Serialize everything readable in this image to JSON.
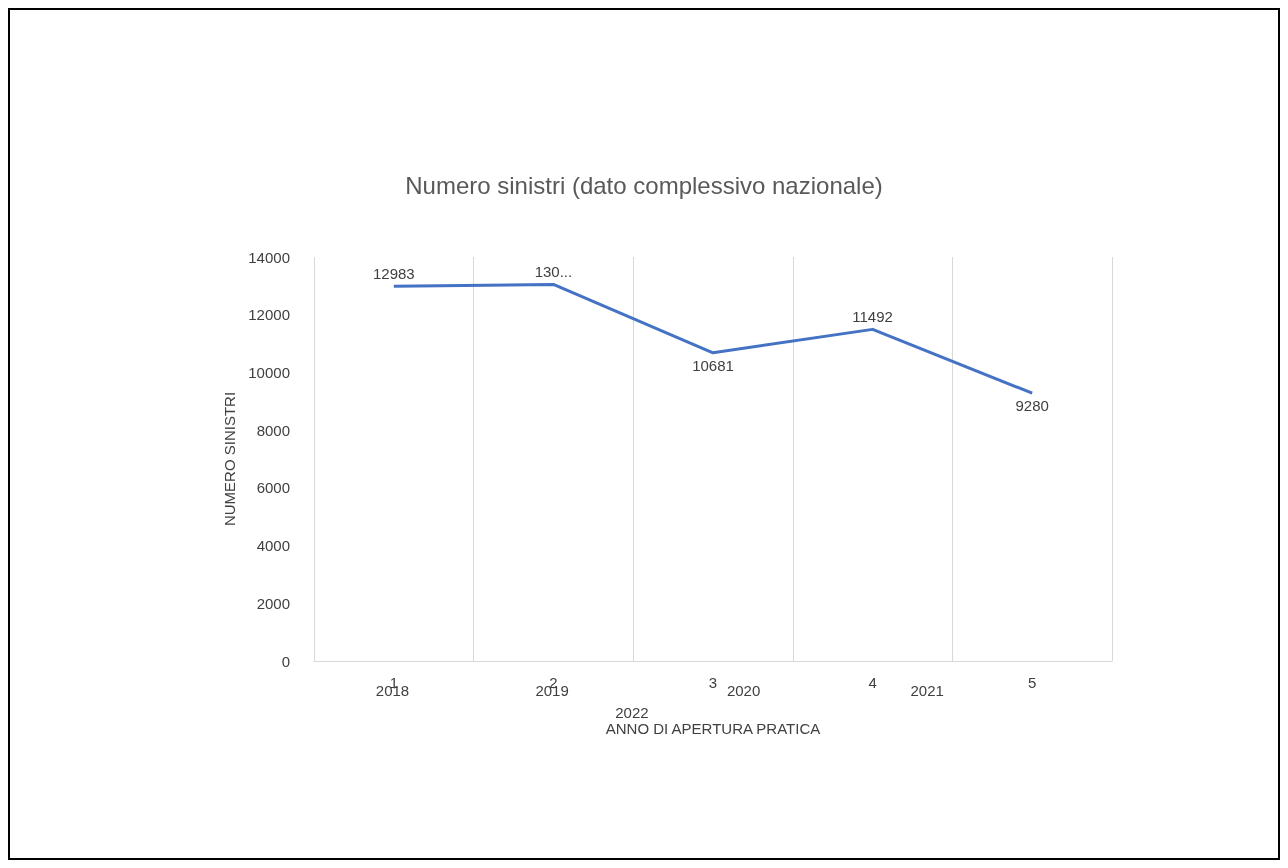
{
  "chart_data": {
    "type": "line",
    "title": "Numero sinistri (dato complessivo nazionale)",
    "xlabel": "ANNO DI APERTURA PRATICA",
    "ylabel": "NUMERO SINISTRI",
    "categories": [
      "1",
      "2",
      "3",
      "4",
      "5"
    ],
    "series": [
      {
        "color": "#4472c4",
        "values": [
          12983,
          13050,
          10681,
          11492,
          9280
        ],
        "value_labels": [
          "12983",
          "130...",
          "10681",
          "11492",
          "9280"
        ]
      }
    ],
    "ylim": [
      0,
      14000
    ],
    "yticks": [
      0,
      2000,
      4000,
      6000,
      8000,
      10000,
      12000,
      14000
    ],
    "grid": "x",
    "marker": "none",
    "line_style": "solid",
    "annotations": [
      "2018",
      "2019",
      "2020",
      "2021",
      "2022"
    ]
  }
}
